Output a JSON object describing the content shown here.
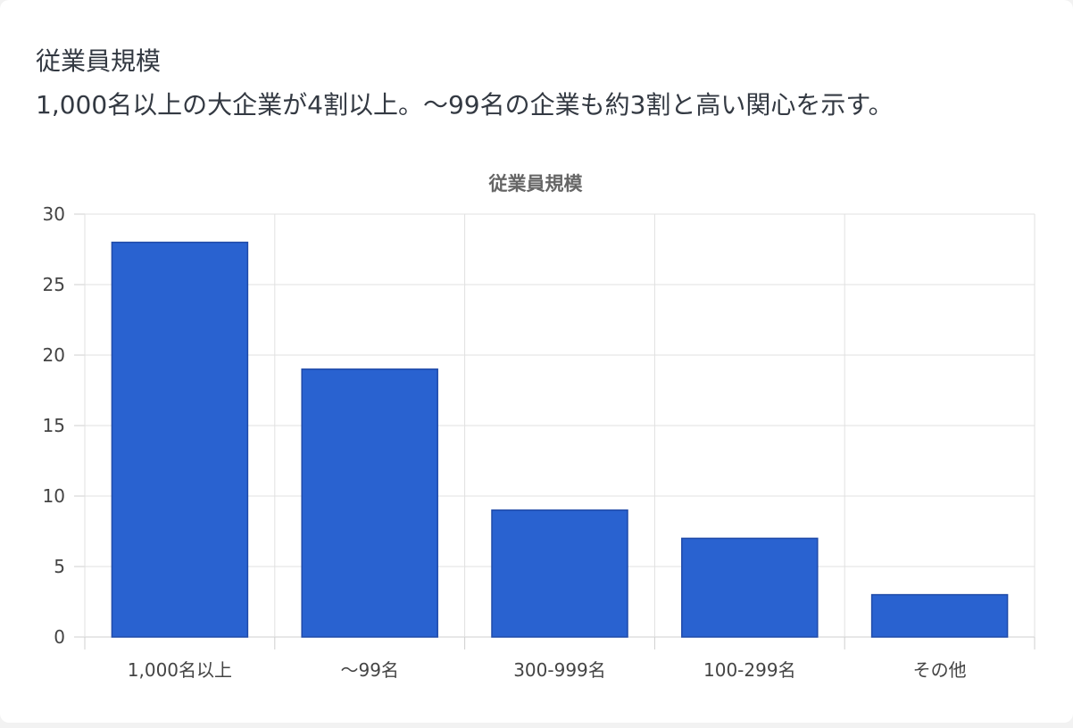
{
  "header": {
    "title": "従業員規模",
    "subtitle": "1,000名以上の大企業が4割以上。〜99名の企業も約3割と高い関心を示す。"
  },
  "colors": {
    "bar_fill": "#2962d0",
    "bar_stroke": "#1f4aa8",
    "grid": "#e0e0e0",
    "axis_text": "#444444",
    "title_text": "#666666"
  },
  "chart_data": {
    "type": "bar",
    "title": "従業員規模",
    "xlabel": "",
    "ylabel": "",
    "categories": [
      "1,000名以上",
      "〜99名",
      "300-999名",
      "100-299名",
      "その他"
    ],
    "values": [
      28,
      19,
      9,
      7,
      3
    ],
    "ylim": [
      0,
      30
    ],
    "yticks": [
      0,
      5,
      10,
      15,
      20,
      25,
      30
    ],
    "grid": true,
    "legend": "none"
  }
}
